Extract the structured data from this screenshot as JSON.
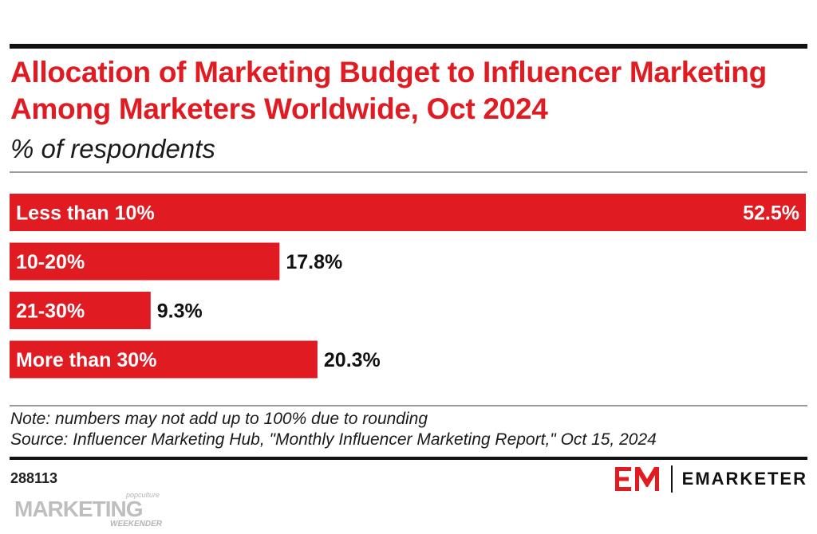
{
  "chart_data": {
    "type": "bar",
    "orientation": "horizontal",
    "title": "Allocation of Marketing Budget to Influencer Marketing Among Marketers Worldwide, Oct 2024",
    "subtitle": "% of respondents",
    "categories": [
      "Less than 10%",
      "10-20%",
      "21-30%",
      "More than 30%"
    ],
    "values": [
      52.5,
      17.8,
      9.3,
      20.3
    ],
    "value_labels": [
      "52.5%",
      "17.8%",
      "9.3%",
      "20.3%"
    ],
    "xlim": [
      0,
      52.5
    ],
    "bar_color": "#e11b22",
    "grid": false,
    "legend": "none"
  },
  "footer": {
    "note": "Note: numbers may not add up to 100% due to rounding",
    "source": "Source: Influencer Marketing Hub, \"Monthly Influencer Marketing Report,\" Oct 15, 2024",
    "chart_id": "288113",
    "brand_name": "EMARKETER"
  },
  "watermark": {
    "text": "MARKETING",
    "small_top": "popculture",
    "small_bottom": "WEEKENDER"
  },
  "colors": {
    "accent": "#e11b22",
    "text": "#1a1a1a"
  }
}
